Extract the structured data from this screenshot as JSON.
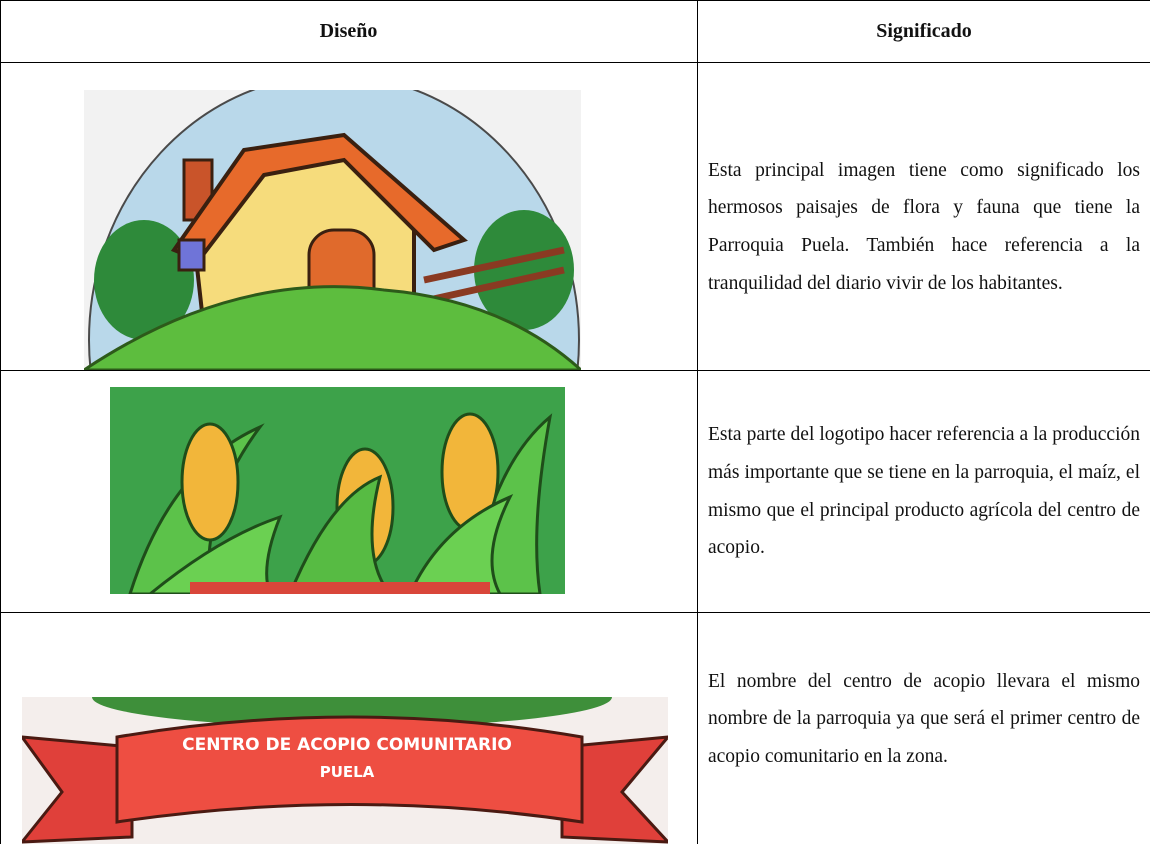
{
  "table": {
    "header": [
      "Diseño",
      "Significado"
    ],
    "rows": [
      {
        "meaning": "Esta principal imagen tiene como significado los hermosos paisajes de flora y fauna que tiene la Parroquia Puela. También hace referencia a la tranquilidad del diario vivir de los habitantes."
      },
      {
        "meaning": "Esta parte del logotipo hacer referencia a la producción más importante que se tiene en la parroquia, el maíz, el mismo que el principal producto agrícola del centro de acopio."
      },
      {
        "banner": [
          "CENTRO DE ACOPIO COMUNITARIO",
          "PUELA"
        ],
        "meaning": "El nombre del centro de acopio llevara el mismo nombre de la parroquia ya que será el primer centro de acopio comunitario en la zona."
      }
    ]
  }
}
